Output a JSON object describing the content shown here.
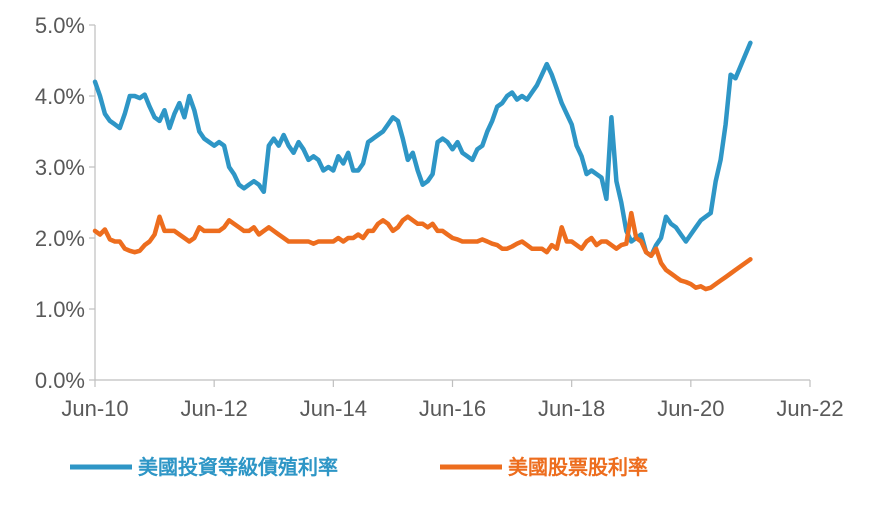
{
  "chart_data": {
    "type": "line",
    "title": "",
    "xlabel": "",
    "ylabel": "",
    "x_start": "2010-06",
    "x_end": "2022-06",
    "x_ticks": [
      "Jun-10",
      "Jun-12",
      "Jun-14",
      "Jun-16",
      "Jun-18",
      "Jun-20",
      "Jun-22"
    ],
    "y_ticks": [
      "0.0%",
      "1.0%",
      "2.0%",
      "3.0%",
      "4.0%",
      "5.0%"
    ],
    "ylim": [
      0,
      5
    ],
    "grid": false,
    "legend_position": "bottom",
    "series": [
      {
        "name": "美國投資等級債殖利率",
        "color": "#2E96C6",
        "points": [
          [
            "2010-06",
            4.2
          ],
          [
            "2010-07",
            4.0
          ],
          [
            "2010-08",
            3.75
          ],
          [
            "2010-09",
            3.65
          ],
          [
            "2010-10",
            3.6
          ],
          [
            "2010-11",
            3.55
          ],
          [
            "2010-12",
            3.75
          ],
          [
            "2011-01",
            4.0
          ],
          [
            "2011-02",
            4.0
          ],
          [
            "2011-03",
            3.97
          ],
          [
            "2011-04",
            4.02
          ],
          [
            "2011-05",
            3.85
          ],
          [
            "2011-06",
            3.7
          ],
          [
            "2011-07",
            3.65
          ],
          [
            "2011-08",
            3.8
          ],
          [
            "2011-09",
            3.55
          ],
          [
            "2011-10",
            3.75
          ],
          [
            "2011-11",
            3.9
          ],
          [
            "2011-12",
            3.7
          ],
          [
            "2012-01",
            4.0
          ],
          [
            "2012-02",
            3.8
          ],
          [
            "2012-03",
            3.5
          ],
          [
            "2012-04",
            3.4
          ],
          [
            "2012-05",
            3.35
          ],
          [
            "2012-06",
            3.3
          ],
          [
            "2012-07",
            3.35
          ],
          [
            "2012-08",
            3.3
          ],
          [
            "2012-09",
            3.0
          ],
          [
            "2012-10",
            2.9
          ],
          [
            "2012-11",
            2.75
          ],
          [
            "2012-12",
            2.7
          ],
          [
            "2013-01",
            2.75
          ],
          [
            "2013-02",
            2.8
          ],
          [
            "2013-03",
            2.75
          ],
          [
            "2013-04",
            2.65
          ],
          [
            "2013-05",
            3.3
          ],
          [
            "2013-06",
            3.4
          ],
          [
            "2013-07",
            3.3
          ],
          [
            "2013-08",
            3.45
          ],
          [
            "2013-09",
            3.3
          ],
          [
            "2013-10",
            3.2
          ],
          [
            "2013-11",
            3.35
          ],
          [
            "2013-12",
            3.25
          ],
          [
            "2014-01",
            3.1
          ],
          [
            "2014-02",
            3.15
          ],
          [
            "2014-03",
            3.1
          ],
          [
            "2014-04",
            2.95
          ],
          [
            "2014-05",
            3.0
          ],
          [
            "2014-06",
            2.95
          ],
          [
            "2014-07",
            3.15
          ],
          [
            "2014-08",
            3.05
          ],
          [
            "2014-09",
            3.2
          ],
          [
            "2014-10",
            2.95
          ],
          [
            "2014-11",
            2.95
          ],
          [
            "2014-12",
            3.05
          ],
          [
            "2015-01",
            3.35
          ],
          [
            "2015-02",
            3.4
          ],
          [
            "2015-03",
            3.45
          ],
          [
            "2015-04",
            3.5
          ],
          [
            "2015-05",
            3.6
          ],
          [
            "2015-06",
            3.7
          ],
          [
            "2015-07",
            3.65
          ],
          [
            "2015-08",
            3.4
          ],
          [
            "2015-09",
            3.1
          ],
          [
            "2015-10",
            3.2
          ],
          [
            "2015-11",
            2.95
          ],
          [
            "2015-12",
            2.75
          ],
          [
            "2016-01",
            2.8
          ],
          [
            "2016-02",
            2.9
          ],
          [
            "2016-03",
            3.35
          ],
          [
            "2016-04",
            3.4
          ],
          [
            "2016-05",
            3.35
          ],
          [
            "2016-06",
            3.25
          ],
          [
            "2016-07",
            3.35
          ],
          [
            "2016-08",
            3.2
          ],
          [
            "2016-09",
            3.15
          ],
          [
            "2016-10",
            3.1
          ],
          [
            "2016-11",
            3.25
          ],
          [
            "2016-12",
            3.3
          ],
          [
            "2017-01",
            3.5
          ],
          [
            "2017-02",
            3.65
          ],
          [
            "2017-03",
            3.85
          ],
          [
            "2017-04",
            3.9
          ],
          [
            "2017-05",
            4.0
          ],
          [
            "2017-06",
            4.05
          ],
          [
            "2017-07",
            3.95
          ],
          [
            "2017-08",
            4.0
          ],
          [
            "2017-09",
            3.95
          ],
          [
            "2017-10",
            4.05
          ],
          [
            "2017-11",
            4.15
          ],
          [
            "2017-12",
            4.3
          ],
          [
            "2018-01",
            4.45
          ],
          [
            "2018-02",
            4.3
          ],
          [
            "2018-03",
            4.1
          ],
          [
            "2018-04",
            3.9
          ],
          [
            "2018-05",
            3.75
          ],
          [
            "2018-06",
            3.6
          ],
          [
            "2018-07",
            3.3
          ],
          [
            "2018-08",
            3.15
          ],
          [
            "2018-09",
            2.9
          ],
          [
            "2018-10",
            2.95
          ],
          [
            "2018-11",
            2.9
          ],
          [
            "2018-12",
            2.85
          ],
          [
            "2019-01",
            2.55
          ],
          [
            "2019-02",
            3.7
          ],
          [
            "2019-03",
            2.8
          ],
          [
            "2019-04",
            2.5
          ],
          [
            "2019-05",
            2.1
          ],
          [
            "2019-06",
            1.95
          ],
          [
            "2019-07",
            2.0
          ],
          [
            "2019-08",
            2.05
          ],
          [
            "2019-09",
            1.8
          ],
          [
            "2019-10",
            1.75
          ],
          [
            "2019-11",
            1.9
          ],
          [
            "2019-12",
            2.0
          ],
          [
            "2020-01",
            2.3
          ],
          [
            "2020-02",
            2.2
          ],
          [
            "2020-03",
            2.15
          ],
          [
            "2020-04",
            2.05
          ],
          [
            "2020-05",
            1.95
          ],
          [
            "2020-06",
            2.05
          ],
          [
            "2020-07",
            2.15
          ],
          [
            "2020-08",
            2.25
          ],
          [
            "2020-09",
            2.3
          ],
          [
            "2020-10",
            2.35
          ],
          [
            "2020-11",
            2.8
          ],
          [
            "2020-12",
            3.1
          ],
          [
            "2021-01",
            3.6
          ],
          [
            "2021-02",
            4.3
          ],
          [
            "2021-03",
            4.25
          ],
          [
            "2021-06",
            4.75
          ]
        ]
      },
      {
        "name": "美國股票股利率",
        "color": "#ED6D1E",
        "points": [
          [
            "2010-06",
            2.1
          ],
          [
            "2010-07",
            2.05
          ],
          [
            "2010-08",
            2.12
          ],
          [
            "2010-09",
            1.98
          ],
          [
            "2010-10",
            1.95
          ],
          [
            "2010-11",
            1.95
          ],
          [
            "2010-12",
            1.85
          ],
          [
            "2011-01",
            1.82
          ],
          [
            "2011-02",
            1.8
          ],
          [
            "2011-03",
            1.82
          ],
          [
            "2011-04",
            1.9
          ],
          [
            "2011-05",
            1.95
          ],
          [
            "2011-06",
            2.05
          ],
          [
            "2011-07",
            2.3
          ],
          [
            "2011-08",
            2.1
          ],
          [
            "2011-09",
            2.1
          ],
          [
            "2011-10",
            2.1
          ],
          [
            "2011-11",
            2.05
          ],
          [
            "2011-12",
            2.0
          ],
          [
            "2012-01",
            1.95
          ],
          [
            "2012-02",
            2.0
          ],
          [
            "2012-03",
            2.15
          ],
          [
            "2012-04",
            2.1
          ],
          [
            "2012-05",
            2.1
          ],
          [
            "2012-06",
            2.1
          ],
          [
            "2012-07",
            2.1
          ],
          [
            "2012-08",
            2.15
          ],
          [
            "2012-09",
            2.25
          ],
          [
            "2012-10",
            2.2
          ],
          [
            "2012-11",
            2.15
          ],
          [
            "2012-12",
            2.1
          ],
          [
            "2013-01",
            2.1
          ],
          [
            "2013-02",
            2.15
          ],
          [
            "2013-03",
            2.05
          ],
          [
            "2013-04",
            2.1
          ],
          [
            "2013-05",
            2.15
          ],
          [
            "2013-06",
            2.1
          ],
          [
            "2013-07",
            2.05
          ],
          [
            "2013-08",
            2.0
          ],
          [
            "2013-09",
            1.95
          ],
          [
            "2013-10",
            1.95
          ],
          [
            "2013-11",
            1.95
          ],
          [
            "2013-12",
            1.95
          ],
          [
            "2014-01",
            1.95
          ],
          [
            "2014-02",
            1.92
          ],
          [
            "2014-03",
            1.95
          ],
          [
            "2014-04",
            1.95
          ],
          [
            "2014-05",
            1.95
          ],
          [
            "2014-06",
            1.95
          ],
          [
            "2014-07",
            2.0
          ],
          [
            "2014-08",
            1.95
          ],
          [
            "2014-09",
            2.0
          ],
          [
            "2014-10",
            2.0
          ],
          [
            "2014-11",
            2.05
          ],
          [
            "2014-12",
            2.0
          ],
          [
            "2015-01",
            2.1
          ],
          [
            "2015-02",
            2.1
          ],
          [
            "2015-03",
            2.2
          ],
          [
            "2015-04",
            2.25
          ],
          [
            "2015-05",
            2.2
          ],
          [
            "2015-06",
            2.1
          ],
          [
            "2015-07",
            2.15
          ],
          [
            "2015-08",
            2.25
          ],
          [
            "2015-09",
            2.3
          ],
          [
            "2015-10",
            2.25
          ],
          [
            "2015-11",
            2.2
          ],
          [
            "2015-12",
            2.2
          ],
          [
            "2016-01",
            2.15
          ],
          [
            "2016-02",
            2.2
          ],
          [
            "2016-03",
            2.1
          ],
          [
            "2016-04",
            2.1
          ],
          [
            "2016-05",
            2.05
          ],
          [
            "2016-06",
            2.0
          ],
          [
            "2016-07",
            1.98
          ],
          [
            "2016-08",
            1.95
          ],
          [
            "2016-09",
            1.95
          ],
          [
            "2016-10",
            1.95
          ],
          [
            "2016-11",
            1.95
          ],
          [
            "2016-12",
            1.98
          ],
          [
            "2017-01",
            1.95
          ],
          [
            "2017-02",
            1.92
          ],
          [
            "2017-03",
            1.9
          ],
          [
            "2017-04",
            1.85
          ],
          [
            "2017-05",
            1.85
          ],
          [
            "2017-06",
            1.88
          ],
          [
            "2017-07",
            1.92
          ],
          [
            "2017-08",
            1.95
          ],
          [
            "2017-09",
            1.9
          ],
          [
            "2017-10",
            1.85
          ],
          [
            "2017-11",
            1.85
          ],
          [
            "2017-12",
            1.85
          ],
          [
            "2018-01",
            1.8
          ],
          [
            "2018-02",
            1.9
          ],
          [
            "2018-03",
            1.85
          ],
          [
            "2018-04",
            2.15
          ],
          [
            "2018-05",
            1.95
          ],
          [
            "2018-06",
            1.95
          ],
          [
            "2018-07",
            1.9
          ],
          [
            "2018-08",
            1.85
          ],
          [
            "2018-09",
            1.95
          ],
          [
            "2018-10",
            2.0
          ],
          [
            "2018-11",
            1.9
          ],
          [
            "2018-12",
            1.95
          ],
          [
            "2019-01",
            1.95
          ],
          [
            "2019-02",
            1.9
          ],
          [
            "2019-03",
            1.85
          ],
          [
            "2019-04",
            1.9
          ],
          [
            "2019-05",
            1.92
          ],
          [
            "2019-06",
            2.35
          ],
          [
            "2019-07",
            2.0
          ],
          [
            "2019-08",
            1.95
          ],
          [
            "2019-09",
            1.8
          ],
          [
            "2019-10",
            1.75
          ],
          [
            "2019-11",
            1.85
          ],
          [
            "2019-12",
            1.65
          ],
          [
            "2020-01",
            1.55
          ],
          [
            "2020-02",
            1.5
          ],
          [
            "2020-03",
            1.45
          ],
          [
            "2020-04",
            1.4
          ],
          [
            "2020-05",
            1.38
          ],
          [
            "2020-06",
            1.35
          ],
          [
            "2020-07",
            1.3
          ],
          [
            "2020-08",
            1.32
          ],
          [
            "2020-09",
            1.28
          ],
          [
            "2020-10",
            1.3
          ],
          [
            "2020-11",
            1.35
          ],
          [
            "2020-12",
            1.4
          ],
          [
            "2021-01",
            1.45
          ],
          [
            "2021-02",
            1.5
          ],
          [
            "2021-03",
            1.55
          ],
          [
            "2021-06",
            1.7
          ]
        ]
      }
    ]
  }
}
